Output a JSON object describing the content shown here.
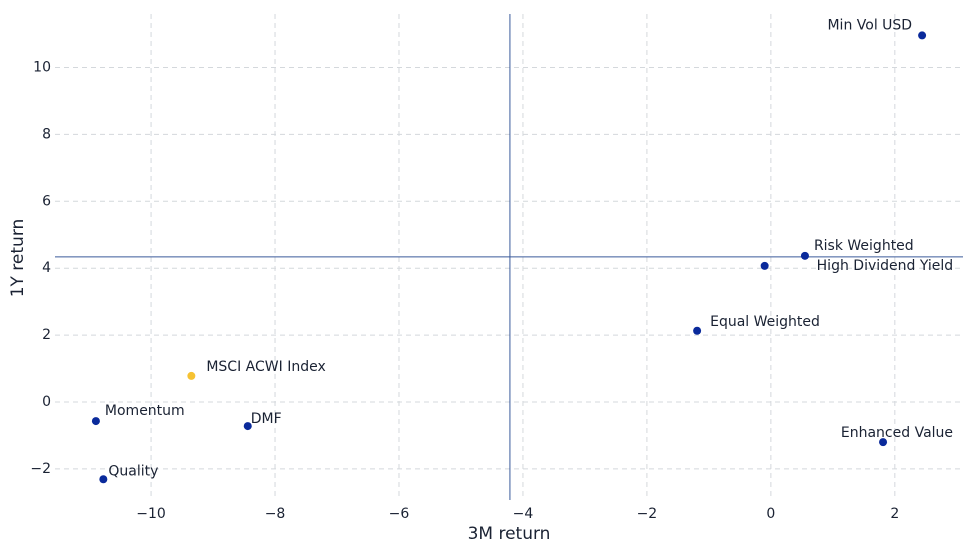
{
  "chart_data": {
    "type": "scatter",
    "x_label": "3M return",
    "y_label": "1Y return",
    "points": [
      {
        "label": "Min Vol USD",
        "x": 2.44,
        "y": 10.96,
        "color": "#0a2a9b"
      },
      {
        "label": "Risk Weighted",
        "x": 0.55,
        "y": 4.37,
        "color": "#0a2a9b"
      },
      {
        "label": "High Dividend Yield",
        "x": -0.1,
        "y": 4.07,
        "color": "#0a2a9b"
      },
      {
        "label": "Equal Weighted",
        "x": -1.19,
        "y": 2.13,
        "color": "#0a2a9b"
      },
      {
        "label": "Enhanced Value",
        "x": 1.81,
        "y": -1.2,
        "color": "#0a2a9b"
      },
      {
        "label": "MSCI ACWI Index",
        "x": -9.35,
        "y": 0.78,
        "color": "#f6c232"
      },
      {
        "label": "Momentum",
        "x": -10.89,
        "y": -0.57,
        "color": "#0a2a9b"
      },
      {
        "label": "DMF",
        "x": -8.44,
        "y": -0.72,
        "color": "#0a2a9b"
      },
      {
        "label": "Quality",
        "x": -10.77,
        "y": -2.31,
        "color": "#0a2a9b"
      }
    ],
    "reference_lines": {
      "x": -4.21,
      "y": 4.34,
      "color": "#3a5a9a"
    },
    "xlim": [
      -11.55,
      3.1
    ],
    "ylim": [
      -2.93,
      11.6
    ],
    "xticks": [
      {
        "value": -10,
        "label": "−10"
      },
      {
        "value": -8,
        "label": "−8"
      },
      {
        "value": -6,
        "label": "−6"
      },
      {
        "value": -4,
        "label": "−4"
      },
      {
        "value": -2,
        "label": "−2"
      },
      0,
      2
    ],
    "yticks": [
      {
        "value": -2,
        "label": "−2"
      },
      0,
      2,
      4,
      6,
      8,
      10
    ],
    "grid": true
  }
}
